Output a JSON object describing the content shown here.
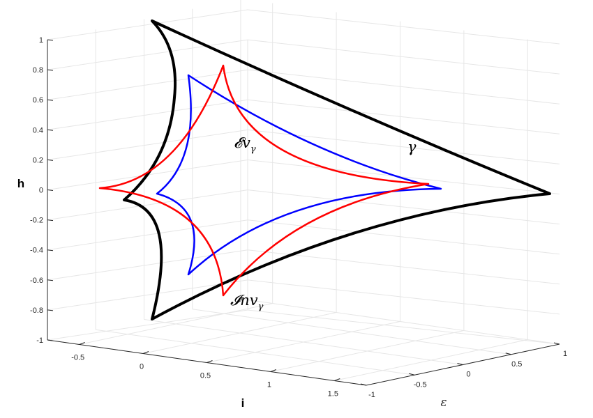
{
  "chart_data": {
    "type": "line",
    "view": "3d",
    "grid": true,
    "axes": {
      "z": {
        "label": "h",
        "ticks": [
          "1",
          "0.8",
          "0.6",
          "0.4",
          "0.2",
          "0",
          "-0.2",
          "-0.4",
          "-0.6",
          "-0.8",
          "-1"
        ],
        "range": [
          -1,
          1
        ]
      },
      "x": {
        "label": "i",
        "ticks": [
          "-0.5",
          "0",
          "0.5",
          "1",
          "1.5"
        ],
        "range": [
          -0.75,
          1.75
        ]
      },
      "y": {
        "label": "ε",
        "ticks": [
          "-1",
          "-0.5",
          "0",
          "0.5",
          "1"
        ],
        "range": [
          -1,
          1
        ]
      }
    },
    "series": [
      {
        "name": "γ",
        "color": "#000000",
        "cusps_h": [
          1.0,
          -0.07,
          -0.87,
          -0.03
        ]
      },
      {
        "name": "𝓔v_γ",
        "color": "#0000ff",
        "cusps_h": [
          0.76,
          -0.03,
          -0.58,
          0.0
        ]
      },
      {
        "name": "𝓘nv_γ",
        "color": "#ff0000",
        "cusps_h": [
          0.82,
          0.0,
          -0.72,
          0.03
        ]
      }
    ],
    "annotations": [
      {
        "text": "γ",
        "series": "γ"
      },
      {
        "main": "𝓔v",
        "sub": "γ",
        "series": "𝓔v_γ"
      },
      {
        "main": "𝓘nv",
        "sub": "γ",
        "series": "𝓘nv_γ"
      }
    ]
  }
}
